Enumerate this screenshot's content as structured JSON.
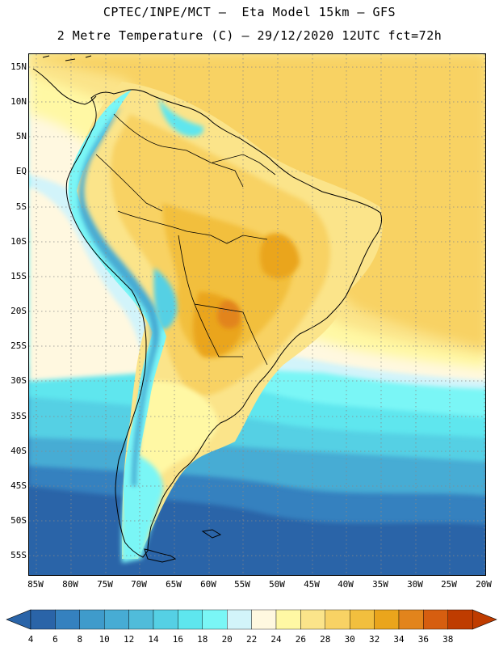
{
  "title_line1": "CPTEC/INPE/MCT –  Eta Model 15km – GFS",
  "title_line2": "2 Metre Temperature (C) – 29/12/2020 12UTC fct=72h",
  "map": {
    "lat_range": [
      -58,
      16.5
    ],
    "lon_range": [
      -86,
      -19
    ],
    "lat_labels": [
      "15N",
      "10N",
      "5N",
      "EQ",
      "5S",
      "10S",
      "15S",
      "20S",
      "25S",
      "30S",
      "35S",
      "40S",
      "45S",
      "50S",
      "55S"
    ],
    "lon_labels": [
      "85W",
      "80W",
      "75W",
      "70W",
      "65W",
      "60W",
      "55W",
      "50W",
      "45W",
      "40W",
      "35W",
      "30W",
      "25W",
      "20W"
    ],
    "gridlines": "dotted every 5 degrees"
  },
  "colorbar": {
    "labels": [
      "4",
      "6",
      "8",
      "10",
      "12",
      "14",
      "16",
      "18",
      "20",
      "22",
      "24",
      "26",
      "28",
      "30",
      "32",
      "34",
      "36",
      "38"
    ],
    "colors": [
      "#2a64a8",
      "#3581bf",
      "#3f9bcb",
      "#47acd4",
      "#50bcda",
      "#55d0e4",
      "#5ee6ee",
      "#7af6f6",
      "#d2f4fa",
      "#fff8e0",
      "#fff8a4",
      "#fbe48a",
      "#f8d264",
      "#f2bf3e",
      "#eaa51c",
      "#e2841c",
      "#d65e10",
      "#bf3c00"
    ],
    "under_color": "#2a64a8",
    "over_color": "#bf3c00"
  }
}
